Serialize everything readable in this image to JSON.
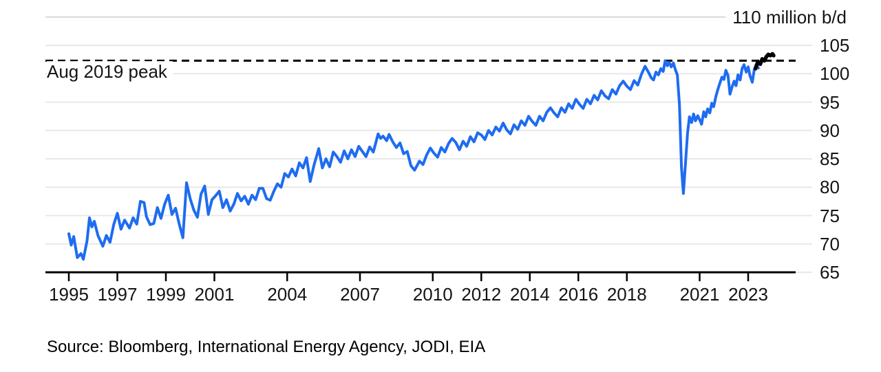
{
  "chart_data": {
    "type": "line",
    "title": "",
    "unit_top_label": "110 million b/d",
    "source": "Source: Bloomberg, International Energy Agency, JODI, EIA",
    "y_axis": {
      "ticks": [
        105,
        100,
        95,
        90,
        85,
        80,
        75,
        70,
        65
      ],
      "top_gridline_value": 110,
      "range": [
        65,
        110
      ],
      "grid": true,
      "labels_side": "right"
    },
    "x_axis": {
      "ticks": [
        1995,
        1997,
        1999,
        2001,
        2004,
        2007,
        2010,
        2012,
        2014,
        2016,
        2018,
        2021,
        2023
      ],
      "range_years": [
        1994,
        2025
      ]
    },
    "annotation": {
      "label": "Aug 2019 peak",
      "dashed_line_value": 102.3
    },
    "colors": {
      "blue_line": "#1e6cf0",
      "black_line": "#000000",
      "grid": "#e8e8e8",
      "grid_top": "#d8d8d8",
      "axis": "#000000",
      "text": "#141414",
      "background": "#ffffff"
    },
    "series": [
      {
        "name": "blue-line",
        "color": "#1e6cf0",
        "points": [
          [
            1995.0,
            71.8
          ],
          [
            1995.1,
            69.8
          ],
          [
            1995.2,
            71.3
          ],
          [
            1995.35,
            67.6
          ],
          [
            1995.5,
            68.3
          ],
          [
            1995.6,
            67.3
          ],
          [
            1995.75,
            70.5
          ],
          [
            1995.85,
            74.6
          ],
          [
            1995.95,
            73.0
          ],
          [
            1996.05,
            74.0
          ],
          [
            1996.2,
            71.5
          ],
          [
            1996.4,
            69.6
          ],
          [
            1996.55,
            71.5
          ],
          [
            1996.7,
            70.3
          ],
          [
            1996.85,
            73.4
          ],
          [
            1997.0,
            75.4
          ],
          [
            1997.15,
            72.6
          ],
          [
            1997.3,
            74.2
          ],
          [
            1997.5,
            72.8
          ],
          [
            1997.65,
            74.6
          ],
          [
            1997.8,
            73.5
          ],
          [
            1997.95,
            77.5
          ],
          [
            1998.1,
            77.3
          ],
          [
            1998.2,
            74.8
          ],
          [
            1998.35,
            73.4
          ],
          [
            1998.5,
            73.6
          ],
          [
            1998.65,
            76.4
          ],
          [
            1998.8,
            74.5
          ],
          [
            1998.95,
            77.0
          ],
          [
            1999.1,
            78.6
          ],
          [
            1999.25,
            75.2
          ],
          [
            1999.4,
            76.3
          ],
          [
            1999.55,
            73.5
          ],
          [
            1999.7,
            71.1
          ],
          [
            1999.85,
            80.8
          ],
          [
            2000.0,
            78.0
          ],
          [
            2000.15,
            76.0
          ],
          [
            2000.3,
            74.7
          ],
          [
            2000.45,
            78.8
          ],
          [
            2000.6,
            80.2
          ],
          [
            2000.75,
            75.2
          ],
          [
            2000.9,
            77.8
          ],
          [
            2001.05,
            78.5
          ],
          [
            2001.2,
            79.3
          ],
          [
            2001.35,
            76.4
          ],
          [
            2001.5,
            77.8
          ],
          [
            2001.65,
            75.8
          ],
          [
            2001.8,
            77.0
          ],
          [
            2001.95,
            78.9
          ],
          [
            2002.1,
            77.6
          ],
          [
            2002.25,
            78.4
          ],
          [
            2002.4,
            77.0
          ],
          [
            2002.55,
            78.6
          ],
          [
            2002.7,
            77.8
          ],
          [
            2002.85,
            79.8
          ],
          [
            2003.0,
            79.8
          ],
          [
            2003.15,
            78.0
          ],
          [
            2003.3,
            77.7
          ],
          [
            2003.45,
            79.3
          ],
          [
            2003.6,
            80.6
          ],
          [
            2003.75,
            80.0
          ],
          [
            2003.9,
            82.4
          ],
          [
            2004.05,
            81.8
          ],
          [
            2004.2,
            83.2
          ],
          [
            2004.35,
            82.0
          ],
          [
            2004.5,
            84.3
          ],
          [
            2004.65,
            83.4
          ],
          [
            2004.8,
            85.2
          ],
          [
            2004.95,
            81.0
          ],
          [
            2005.1,
            83.8
          ],
          [
            2005.3,
            86.8
          ],
          [
            2005.45,
            83.4
          ],
          [
            2005.6,
            85.0
          ],
          [
            2005.75,
            83.6
          ],
          [
            2005.9,
            86.2
          ],
          [
            2006.05,
            85.4
          ],
          [
            2006.2,
            84.4
          ],
          [
            2006.35,
            86.4
          ],
          [
            2006.5,
            85.0
          ],
          [
            2006.65,
            86.6
          ],
          [
            2006.8,
            85.4
          ],
          [
            2006.95,
            87.2
          ],
          [
            2007.1,
            86.3
          ],
          [
            2007.25,
            85.4
          ],
          [
            2007.4,
            87.1
          ],
          [
            2007.55,
            86.2
          ],
          [
            2007.75,
            89.4
          ],
          [
            2007.85,
            88.6
          ],
          [
            2007.95,
            89.0
          ],
          [
            2008.1,
            88.2
          ],
          [
            2008.2,
            89.3
          ],
          [
            2008.35,
            88.0
          ],
          [
            2008.5,
            87.0
          ],
          [
            2008.65,
            87.8
          ],
          [
            2008.8,
            85.9
          ],
          [
            2008.95,
            86.3
          ],
          [
            2009.1,
            83.8
          ],
          [
            2009.25,
            83.0
          ],
          [
            2009.45,
            84.6
          ],
          [
            2009.6,
            84.0
          ],
          [
            2009.75,
            85.7
          ],
          [
            2009.9,
            86.9
          ],
          [
            2010.05,
            86.0
          ],
          [
            2010.2,
            85.3
          ],
          [
            2010.35,
            87.0
          ],
          [
            2010.5,
            86.2
          ],
          [
            2010.65,
            87.7
          ],
          [
            2010.8,
            88.6
          ],
          [
            2010.95,
            87.9
          ],
          [
            2011.1,
            86.6
          ],
          [
            2011.25,
            88.1
          ],
          [
            2011.4,
            87.2
          ],
          [
            2011.55,
            88.9
          ],
          [
            2011.7,
            88.0
          ],
          [
            2011.85,
            89.6
          ],
          [
            2012.0,
            89.2
          ],
          [
            2012.15,
            88.4
          ],
          [
            2012.3,
            90.0
          ],
          [
            2012.45,
            89.2
          ],
          [
            2012.6,
            90.6
          ],
          [
            2012.75,
            89.9
          ],
          [
            2012.9,
            91.3
          ],
          [
            2013.05,
            90.1
          ],
          [
            2013.2,
            89.4
          ],
          [
            2013.35,
            91.0
          ],
          [
            2013.5,
            90.2
          ],
          [
            2013.65,
            91.7
          ],
          [
            2013.8,
            90.9
          ],
          [
            2013.95,
            92.5
          ],
          [
            2014.1,
            91.6
          ],
          [
            2014.25,
            90.9
          ],
          [
            2014.4,
            92.5
          ],
          [
            2014.55,
            91.7
          ],
          [
            2014.7,
            93.2
          ],
          [
            2014.85,
            94.0
          ],
          [
            2015.0,
            93.1
          ],
          [
            2015.15,
            92.4
          ],
          [
            2015.3,
            94.0
          ],
          [
            2015.45,
            93.2
          ],
          [
            2015.6,
            94.7
          ],
          [
            2015.75,
            93.9
          ],
          [
            2015.9,
            95.5
          ],
          [
            2016.05,
            94.6
          ],
          [
            2016.2,
            93.9
          ],
          [
            2016.35,
            95.5
          ],
          [
            2016.5,
            94.7
          ],
          [
            2016.65,
            96.2
          ],
          [
            2016.8,
            95.4
          ],
          [
            2016.95,
            97.0
          ],
          [
            2017.1,
            96.1
          ],
          [
            2017.25,
            95.6
          ],
          [
            2017.4,
            97.2
          ],
          [
            2017.55,
            96.4
          ],
          [
            2017.7,
            97.9
          ],
          [
            2017.85,
            98.7
          ],
          [
            2018.0,
            97.8
          ],
          [
            2018.15,
            97.2
          ],
          [
            2018.3,
            98.8
          ],
          [
            2018.45,
            98.0
          ],
          [
            2018.6,
            99.9
          ],
          [
            2018.75,
            101.3
          ],
          [
            2018.9,
            100.2
          ],
          [
            2019.0,
            99.3
          ],
          [
            2019.1,
            98.9
          ],
          [
            2019.2,
            100.3
          ],
          [
            2019.3,
            99.8
          ],
          [
            2019.4,
            100.9
          ],
          [
            2019.5,
            100.4
          ],
          [
            2019.58,
            102.3
          ],
          [
            2019.67,
            101.4
          ],
          [
            2019.75,
            102.0
          ],
          [
            2019.83,
            101.2
          ],
          [
            2019.92,
            101.9
          ],
          [
            2020.0,
            100.7
          ],
          [
            2020.08,
            99.8
          ],
          [
            2020.17,
            94.5
          ],
          [
            2020.25,
            83.5
          ],
          [
            2020.33,
            78.9
          ],
          [
            2020.42,
            84.5
          ],
          [
            2020.5,
            89.5
          ],
          [
            2020.58,
            92.4
          ],
          [
            2020.67,
            91.4
          ],
          [
            2020.75,
            92.9
          ],
          [
            2020.83,
            91.7
          ],
          [
            2020.92,
            92.6
          ],
          [
            2021.0,
            91.9
          ],
          [
            2021.08,
            91.1
          ],
          [
            2021.17,
            93.3
          ],
          [
            2021.25,
            92.4
          ],
          [
            2021.33,
            93.8
          ],
          [
            2021.42,
            93.1
          ],
          [
            2021.5,
            94.8
          ],
          [
            2021.58,
            94.2
          ],
          [
            2021.67,
            96.0
          ],
          [
            2021.75,
            97.2
          ],
          [
            2021.83,
            98.3
          ],
          [
            2021.92,
            99.4
          ],
          [
            2022.0,
            99.0
          ],
          [
            2022.08,
            100.6
          ],
          [
            2022.17,
            99.7
          ],
          [
            2022.25,
            96.4
          ],
          [
            2022.33,
            97.6
          ],
          [
            2022.42,
            98.7
          ],
          [
            2022.5,
            97.9
          ],
          [
            2022.58,
            99.8
          ],
          [
            2022.67,
            98.9
          ],
          [
            2022.75,
            100.9
          ],
          [
            2022.83,
            101.6
          ],
          [
            2022.92,
            100.3
          ],
          [
            2023.0,
            101.2
          ],
          [
            2023.08,
            99.6
          ],
          [
            2023.17,
            98.5
          ],
          [
            2023.25,
            100.7
          ],
          [
            2023.33,
            101.6
          ],
          [
            2023.42,
            101.0
          ]
        ]
      },
      {
        "name": "black-line-latest",
        "color": "#000000",
        "points": [
          [
            2023.3,
            100.9
          ],
          [
            2023.4,
            102.1
          ],
          [
            2023.5,
            101.7
          ],
          [
            2023.58,
            102.6
          ],
          [
            2023.67,
            102.3
          ],
          [
            2023.75,
            103.0
          ],
          [
            2023.83,
            103.4
          ],
          [
            2023.92,
            103.2
          ],
          [
            2024.0,
            103.5
          ],
          [
            2024.05,
            103.2
          ]
        ]
      }
    ]
  }
}
